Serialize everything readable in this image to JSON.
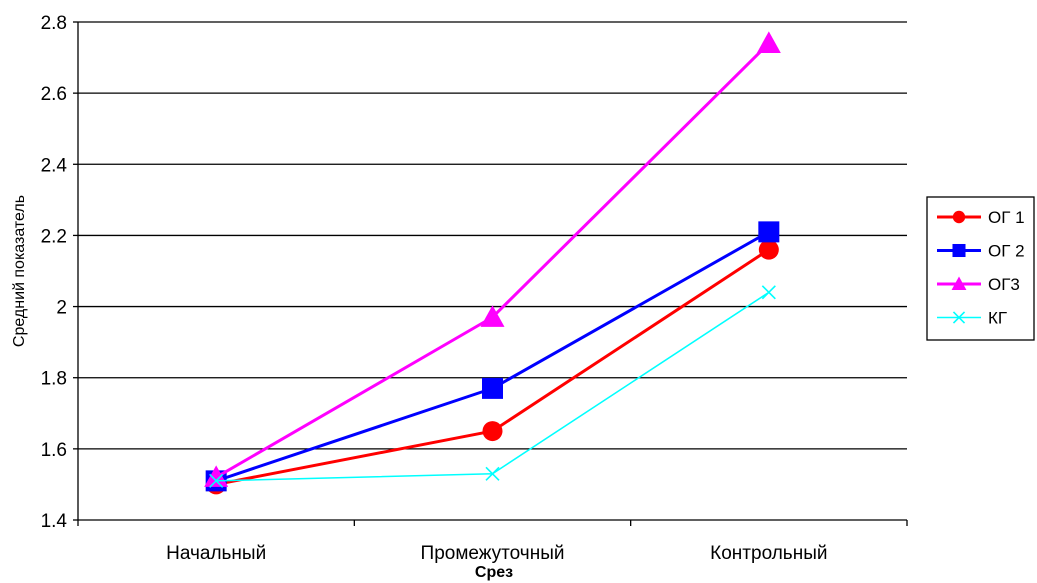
{
  "chart_data": {
    "type": "line",
    "xlabel": "Срез",
    "ylabel": "Средний показатель",
    "categories": [
      "Начальный",
      "Промежуточный",
      "Контрольный"
    ],
    "ylim": [
      1.4,
      2.8
    ],
    "yticks": [
      "1.4",
      "1.6",
      "1.8",
      "2",
      "2.2",
      "2.4",
      "2.6",
      "2.8"
    ],
    "grid": true,
    "legend_position": "right",
    "series": [
      {
        "name": "ОГ 1",
        "values": [
          1.5,
          1.65,
          2.16
        ],
        "color": "#ff0000",
        "marker": "circle",
        "width": 3
      },
      {
        "name": "ОГ 2",
        "values": [
          1.51,
          1.77,
          2.21
        ],
        "color": "#0000ff",
        "marker": "square",
        "width": 3
      },
      {
        "name": "ОГ3",
        "values": [
          1.52,
          1.97,
          2.74
        ],
        "color": "#ff00ff",
        "marker": "triangle",
        "width": 3
      },
      {
        "name": "КГ",
        "values": [
          1.51,
          1.53,
          2.04
        ],
        "color": "#00ffff",
        "marker": "x",
        "width": 1.5
      }
    ]
  }
}
